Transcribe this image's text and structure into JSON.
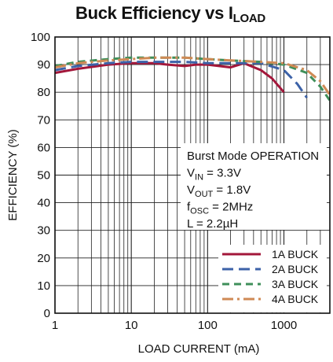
{
  "chart_data": {
    "type": "line",
    "title": "Buck Efficiency vs I",
    "title_sub": "LOAD",
    "xlabel": "LOAD CURRENT (mA)",
    "ylabel": "EFFICIENCY (%)",
    "x_scale": "log",
    "xlim": [
      1,
      4000
    ],
    "ylim": [
      0,
      100
    ],
    "x_ticks": [
      {
        "value": 1,
        "label": "1"
      },
      {
        "value": 10,
        "label": "10"
      },
      {
        "value": 100,
        "label": "100"
      },
      {
        "value": 1000,
        "label": "1000"
      }
    ],
    "y_ticks": [
      0,
      10,
      20,
      30,
      40,
      50,
      60,
      70,
      80,
      90,
      100
    ],
    "grid": true,
    "legend_position": "bottom-right",
    "annotation": [
      {
        "main": "Burst Mode OPERATION",
        "sub": "",
        "rest": ""
      },
      {
        "main": "V",
        "sub": "IN",
        "rest": " = 3.3V"
      },
      {
        "main": "V",
        "sub": "OUT",
        "rest": " = 1.8V"
      },
      {
        "main": "f",
        "sub": "OSC",
        "rest": " = 2MHz"
      },
      {
        "main": "L = 2.2µH",
        "sub": "",
        "rest": ""
      }
    ],
    "series": [
      {
        "name": "1A BUCK",
        "color": "#a3173a",
        "dash": "solid",
        "x": [
          1,
          2,
          5,
          10,
          20,
          30,
          50,
          70,
          100,
          200,
          300,
          500,
          700,
          1000
        ],
        "y": [
          87,
          88.5,
          90,
          90.5,
          90.5,
          90,
          89.5,
          90,
          90,
          89,
          90.5,
          88,
          85,
          80
        ]
      },
      {
        "name": "2A BUCK",
        "color": "#3c62a8",
        "dash": "longdash",
        "x": [
          1,
          2,
          5,
          10,
          20,
          50,
          100,
          200,
          500,
          1000,
          1500,
          2000
        ],
        "y": [
          88,
          89.5,
          90.5,
          91,
          91,
          91,
          90.5,
          90.5,
          90.5,
          88,
          83,
          78
        ]
      },
      {
        "name": "3A BUCK",
        "color": "#3f8f5a",
        "dash": "dash",
        "x": [
          1,
          2,
          5,
          10,
          20,
          50,
          100,
          200,
          500,
          1000,
          2000,
          3000,
          4000
        ],
        "y": [
          89.5,
          91,
          92,
          92.5,
          92.5,
          92.5,
          92,
          91.5,
          91,
          90,
          87,
          82,
          77
        ]
      },
      {
        "name": "4A BUCK",
        "color": "#cf8a55",
        "dash": "dashdot",
        "x": [
          1,
          2,
          5,
          10,
          20,
          50,
          100,
          200,
          500,
          1000,
          2000,
          3000,
          4000
        ],
        "y": [
          89,
          90.5,
          91.5,
          92,
          92.5,
          92.5,
          92,
          91.5,
          91,
          90.5,
          88,
          84,
          79
        ]
      }
    ]
  }
}
